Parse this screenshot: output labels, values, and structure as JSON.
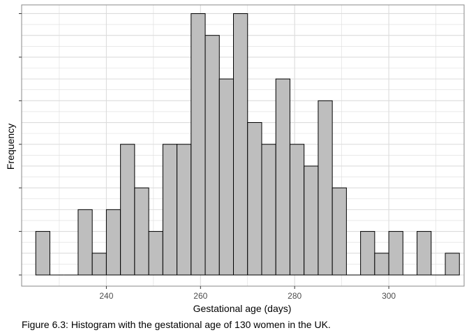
{
  "chart_data": {
    "type": "bar",
    "subtype": "histogram",
    "xlabel": "Gestational age (days)",
    "ylabel": "Frequency",
    "x_ticks": [
      240,
      260,
      280,
      300
    ],
    "xlim": [
      222,
      316
    ],
    "ylim": [
      0,
      12.4
    ],
    "y_ticks_labeled": false,
    "grid": true,
    "bin_width": 3,
    "bins": [
      {
        "start": 225,
        "end": 228,
        "count": 2
      },
      {
        "start": 228,
        "end": 231,
        "count": 0
      },
      {
        "start": 231,
        "end": 234,
        "count": 0
      },
      {
        "start": 234,
        "end": 237,
        "count": 3
      },
      {
        "start": 237,
        "end": 240,
        "count": 1
      },
      {
        "start": 240,
        "end": 243,
        "count": 3
      },
      {
        "start": 243,
        "end": 246,
        "count": 6
      },
      {
        "start": 246,
        "end": 249,
        "count": 4
      },
      {
        "start": 249,
        "end": 252,
        "count": 2
      },
      {
        "start": 252,
        "end": 255,
        "count": 6
      },
      {
        "start": 255,
        "end": 258,
        "count": 6
      },
      {
        "start": 258,
        "end": 261,
        "count": 12
      },
      {
        "start": 261,
        "end": 264,
        "count": 11
      },
      {
        "start": 264,
        "end": 267,
        "count": 9
      },
      {
        "start": 267,
        "end": 270,
        "count": 12
      },
      {
        "start": 270,
        "end": 273,
        "count": 7
      },
      {
        "start": 273,
        "end": 276,
        "count": 6
      },
      {
        "start": 276,
        "end": 279,
        "count": 9
      },
      {
        "start": 279,
        "end": 282,
        "count": 6
      },
      {
        "start": 282,
        "end": 285,
        "count": 5
      },
      {
        "start": 285,
        "end": 288,
        "count": 8
      },
      {
        "start": 288,
        "end": 291,
        "count": 4
      },
      {
        "start": 291,
        "end": 294,
        "count": 0
      },
      {
        "start": 294,
        "end": 297,
        "count": 2
      },
      {
        "start": 297,
        "end": 300,
        "count": 1
      },
      {
        "start": 300,
        "end": 303,
        "count": 2
      },
      {
        "start": 303,
        "end": 306,
        "count": 0
      },
      {
        "start": 306,
        "end": 309,
        "count": 2
      },
      {
        "start": 309,
        "end": 312,
        "count": 0
      },
      {
        "start": 312,
        "end": 315,
        "count": 1
      }
    ],
    "colors": {
      "bar_fill": "#bebebe",
      "bar_stroke": "#000000",
      "grid": "#dcdcdc",
      "panel_border": "#8a8a8a",
      "tick_label": "#4d4d4d"
    }
  },
  "caption": "Figure 6.3: Histogram with the gestational age of 130 women in the UK."
}
